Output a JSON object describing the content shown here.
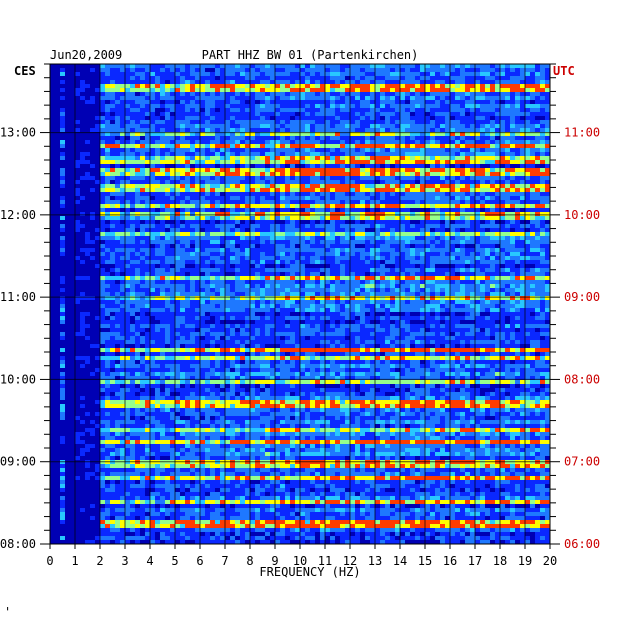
{
  "chart_data": {
    "type": "heatmap",
    "date": "Jun20,2009",
    "title": "PART HHZ BW 01 (Partenkirchen)",
    "left_timezone": "CES",
    "right_timezone": "UTC",
    "xlabel": "FREQUENCY (HZ)",
    "x_ticks": [
      "0",
      "1",
      "2",
      "3",
      "4",
      "5",
      "6",
      "7",
      "8",
      "9",
      "10",
      "11",
      "12",
      "13",
      "14",
      "15",
      "16",
      "17",
      "18",
      "19",
      "20"
    ],
    "xlim": [
      0,
      20
    ],
    "left_time_ticks": [
      "13:00",
      "12:00",
      "11:00",
      "10:00",
      "09:00",
      "08:00"
    ],
    "right_time_ticks": [
      "11:00",
      "10:00",
      "09:00",
      "08:00",
      "07:00",
      "06:00"
    ],
    "time_range_ces": [
      "08:00",
      "13:50"
    ],
    "grid": true,
    "colormap": [
      "#00007a",
      "#0000c8",
      "#0a28ff",
      "#1e78ff",
      "#28c8ff",
      "#96ff8c",
      "#ffff00",
      "#ff3c00"
    ],
    "colors": {
      "right_axis": "#cc0000",
      "left_axis": "#000000"
    },
    "footer_mark": "'"
  }
}
